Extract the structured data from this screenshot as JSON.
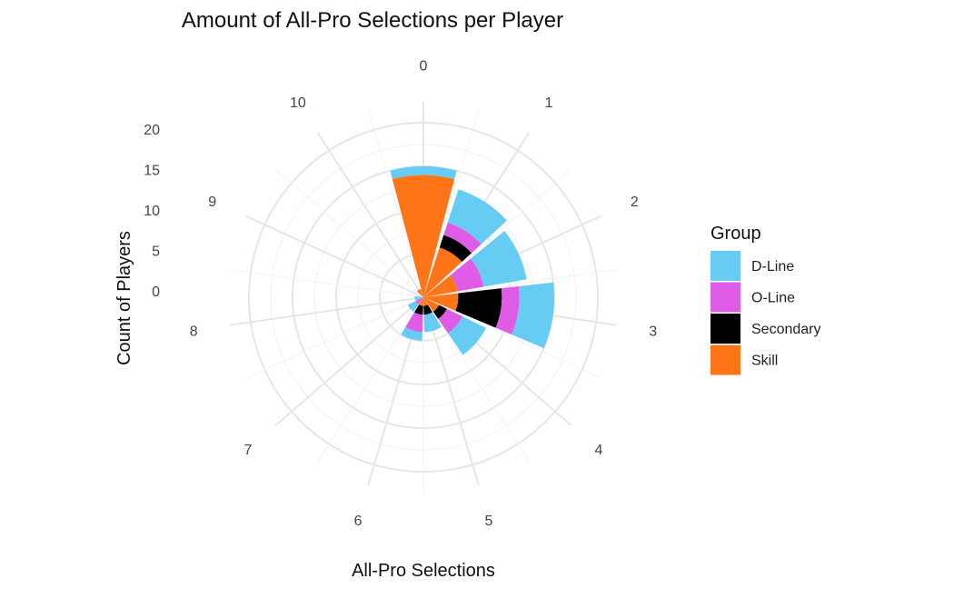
{
  "chart_data": {
    "type": "bar",
    "coord": "polar",
    "title": "Amount of All-Pro Selections per Player",
    "xlabel": "All-Pro Selections",
    "ylabel": "Count of Players",
    "categories": [
      "0",
      "1",
      "2",
      "3",
      "4",
      "5",
      "6",
      "7",
      "8",
      "9",
      "10"
    ],
    "y_ticks": [
      0,
      5,
      10,
      15,
      20
    ],
    "ylim": [
      0,
      20
    ],
    "grid": true,
    "stacked": true,
    "legend": {
      "title": "Group",
      "position": "right"
    },
    "series": [
      {
        "name": "Skill",
        "color": "#FF7518",
        "values": [
          14,
          6,
          4,
          4,
          2,
          1,
          1,
          0,
          0,
          0,
          1
        ]
      },
      {
        "name": "Secondary",
        "color": "#000000",
        "values": [
          0,
          1.5,
          0,
          5,
          1,
          1,
          1,
          0,
          0,
          0,
          0
        ]
      },
      {
        "name": "O-Line",
        "color": "#DF5CE6",
        "values": [
          0,
          1.5,
          3,
          2,
          2,
          0,
          2,
          1,
          0,
          0,
          0
        ]
      },
      {
        "name": "D-Line",
        "color": "#66CCF4",
        "values": [
          1,
          4,
          5,
          4,
          3,
          2,
          1,
          1,
          1,
          0,
          0
        ]
      }
    ]
  }
}
